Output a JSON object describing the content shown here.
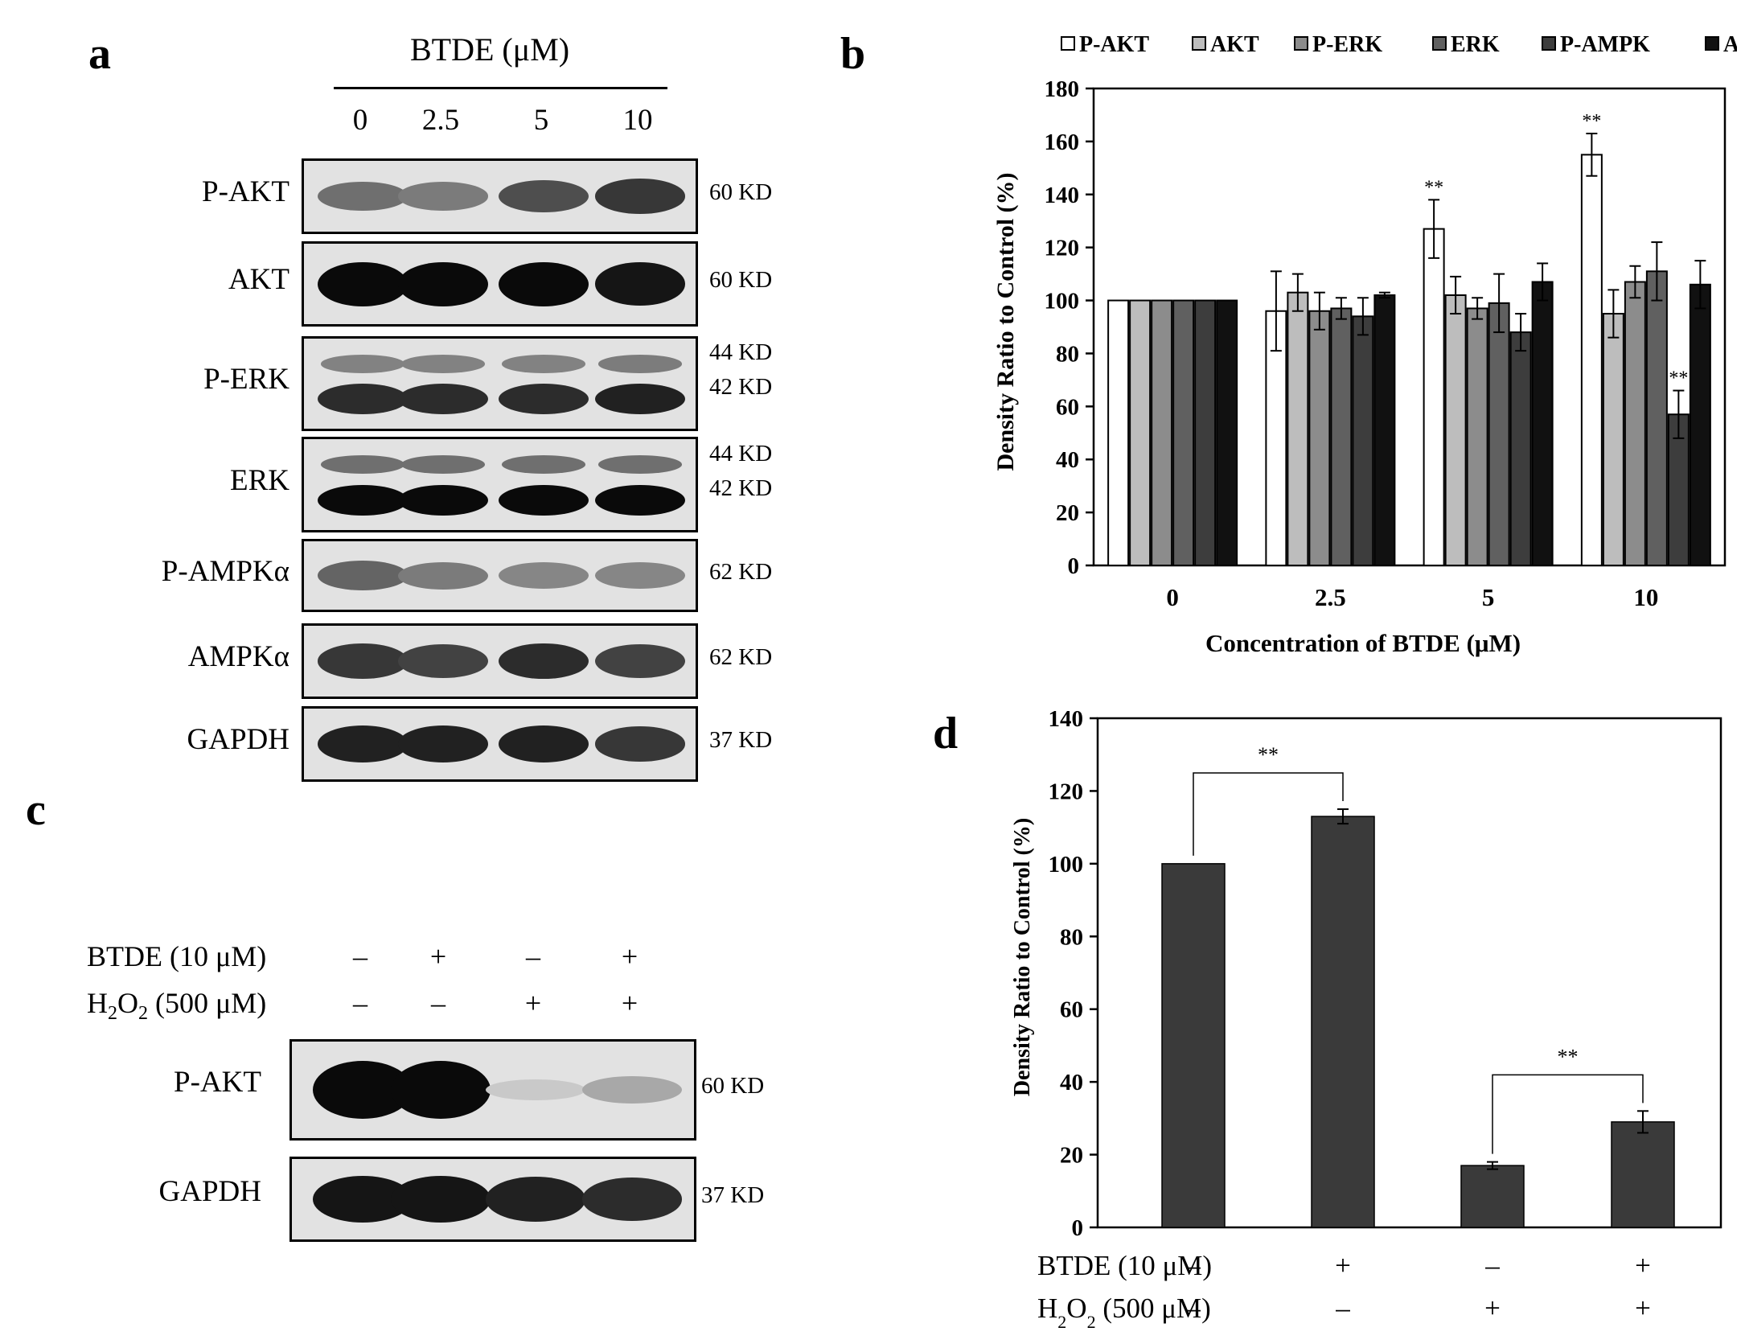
{
  "panel_labels": [
    "a",
    "b",
    "c",
    "d"
  ],
  "panel_a": {
    "treatment_title": "BTDE (μM)",
    "lanes": [
      "0",
      "2.5",
      "5",
      "10"
    ],
    "blots": [
      {
        "name": "P-AKT",
        "kd": [
          "60 KD"
        ],
        "intensity": [
          0.55,
          0.5,
          0.7,
          0.8
        ]
      },
      {
        "name": "AKT",
        "kd": [
          "60 KD"
        ],
        "intensity": [
          1.0,
          1.0,
          1.0,
          0.95
        ]
      },
      {
        "name": "P-ERK",
        "kd": [
          "44 KD",
          "42 KD"
        ],
        "intensity": [
          0.85,
          0.85,
          0.85,
          0.9
        ]
      },
      {
        "name": "ERK",
        "kd": [
          "44 KD",
          "42 KD"
        ],
        "intensity": [
          1.0,
          1.0,
          1.0,
          1.0
        ]
      },
      {
        "name": "P-AMPKα",
        "kd": [
          "62 KD"
        ],
        "intensity": [
          0.6,
          0.5,
          0.45,
          0.45
        ]
      },
      {
        "name": "AMPKα",
        "kd": [
          "62 KD"
        ],
        "intensity": [
          0.8,
          0.75,
          0.85,
          0.75
        ]
      },
      {
        "name": "GAPDH",
        "kd": [
          "37 KD"
        ],
        "intensity": [
          0.9,
          0.9,
          0.9,
          0.8
        ]
      }
    ]
  },
  "panel_c": {
    "treatments": [
      {
        "label": "BTDE (10 μM)",
        "signs": [
          "–",
          "+",
          "–",
          "+"
        ]
      },
      {
        "label_main": "H",
        "label_sub": "2",
        "label_main2": "O",
        "label_sub2": "2",
        "label_rest": " (500 μM)",
        "signs": [
          "–",
          "–",
          "+",
          "+"
        ]
      }
    ],
    "blots": [
      {
        "name": "P-AKT",
        "kd": [
          "60 KD"
        ],
        "intensity": [
          1.0,
          1.0,
          0.15,
          0.3
        ]
      },
      {
        "name": "GAPDH",
        "kd": [
          "37 KD"
        ],
        "intensity": [
          0.95,
          0.95,
          0.9,
          0.85
        ]
      }
    ]
  },
  "colors": {
    "series": [
      "#ffffff",
      "#bdbdbd",
      "#8c8c8c",
      "#606060",
      "#3d3d3d",
      "#111111"
    ],
    "bar_d": "#3a3a3a"
  },
  "chart_data": [
    {
      "type": "bar",
      "panel": "b",
      "xlabel": "Concentration of BTDE (μM)",
      "ylabel": "Density Ratio to Control (%)",
      "categories": [
        "0",
        "2.5",
        "5",
        "10"
      ],
      "ylim": [
        0,
        180
      ],
      "yticks": [
        0,
        20,
        40,
        60,
        80,
        100,
        120,
        140,
        160,
        180
      ],
      "legend_position": "top",
      "series": [
        {
          "name": "P-AKT",
          "values": [
            100,
            96,
            127,
            155
          ],
          "errors": [
            0,
            15,
            11,
            8
          ],
          "sig": [
            "",
            "",
            "**",
            "**"
          ]
        },
        {
          "name": "AKT",
          "values": [
            100,
            103,
            102,
            95
          ],
          "errors": [
            0,
            7,
            7,
            9
          ],
          "sig": [
            "",
            "",
            "",
            ""
          ]
        },
        {
          "name": "P-ERK",
          "values": [
            100,
            96,
            97,
            107
          ],
          "errors": [
            0,
            7,
            4,
            6
          ],
          "sig": [
            "",
            "",
            "",
            ""
          ]
        },
        {
          "name": "ERK",
          "values": [
            100,
            97,
            99,
            111
          ],
          "errors": [
            0,
            4,
            11,
            11
          ],
          "sig": [
            "",
            "",
            "",
            ""
          ]
        },
        {
          "name": "P-AMPK",
          "values": [
            100,
            94,
            88,
            57
          ],
          "errors": [
            0,
            7,
            7,
            9
          ],
          "sig": [
            "",
            "",
            "",
            "**"
          ]
        },
        {
          "name": "AMPK",
          "values": [
            100,
            102,
            107,
            106
          ],
          "errors": [
            0,
            1,
            7,
            9
          ],
          "sig": [
            "",
            "",
            "",
            ""
          ]
        }
      ]
    },
    {
      "type": "bar",
      "panel": "d",
      "ylabel": "Density Ratio to Control (%)",
      "ylim": [
        0,
        140
      ],
      "yticks": [
        0,
        20,
        40,
        60,
        80,
        100,
        120,
        140
      ],
      "values": [
        100,
        113,
        17,
        29
      ],
      "errors": [
        0,
        2,
        1,
        3
      ],
      "treatment_rows": [
        {
          "label": "BTDE (10 μM)",
          "signs": [
            "–",
            "+",
            "–",
            "+"
          ]
        },
        {
          "label_main": "H",
          "label_sub": "2",
          "label_main2": "O",
          "label_sub2": "2",
          "label_rest": " (500 μM)",
          "signs": [
            "–",
            "–",
            "+",
            "+"
          ]
        }
      ],
      "comparisons": [
        {
          "from": 0,
          "to": 1,
          "label": "**"
        },
        {
          "from": 2,
          "to": 3,
          "label": "**"
        }
      ]
    }
  ]
}
